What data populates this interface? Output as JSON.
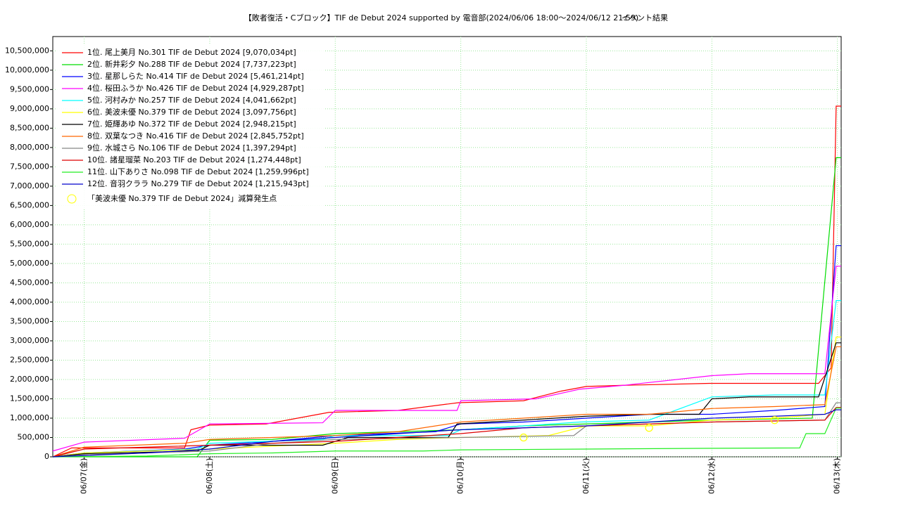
{
  "chart_data": {
    "type": "line",
    "title": "【敗者復活・Cブロック】TIF de Debut 2024 supported by 電音部(2024/06/06 18:00〜2024/06/12 21:59)",
    "subtitle": "イベント結果",
    "xlim": [
      6.75,
      13.03
    ],
    "xticks": [
      {
        "value": 7,
        "label": "06/07(金)"
      },
      {
        "value": 8,
        "label": "06/08(土)"
      },
      {
        "value": 9,
        "label": "06/09(日)"
      },
      {
        "value": 10,
        "label": "06/10(月)"
      },
      {
        "value": 11,
        "label": "06/11(火)"
      },
      {
        "value": 12,
        "label": "06/12(水)"
      },
      {
        "value": 13,
        "label": "06/13(木)"
      }
    ],
    "ylim": [
      0,
      10870000
    ],
    "yticks": [
      0,
      {
        "value": 500000,
        "label": "500,000"
      },
      {
        "value": 1000000,
        "label": "1,000,000"
      },
      {
        "value": 1500000,
        "label": "1,500,000"
      },
      {
        "value": 2000000,
        "label": "2,000,000"
      },
      {
        "value": 2500000,
        "label": "2,500,000"
      },
      {
        "value": 3000000,
        "label": "3,000,000"
      },
      {
        "value": 3500000,
        "label": "3,500,000"
      },
      {
        "value": 4000000,
        "label": "4,000,000"
      },
      {
        "value": 4500000,
        "label": "4,500,000"
      },
      {
        "value": 5000000,
        "label": "5,000,000"
      },
      {
        "value": 5500000,
        "label": "5,500,000"
      },
      {
        "value": 6000000,
        "label": "6,000,000"
      },
      {
        "value": 6500000,
        "label": "6,500,000"
      },
      {
        "value": 7000000,
        "label": "7,000,000"
      },
      {
        "value": 7500000,
        "label": "7,500,000"
      },
      {
        "value": 8000000,
        "label": "8,000,000"
      },
      {
        "value": 8500000,
        "label": "8,500,000"
      },
      {
        "value": 9000000,
        "label": "9,000,000"
      },
      {
        "value": 9500000,
        "label": "9,500,000"
      },
      {
        "value": 10000000,
        "label": "10,000,000"
      },
      {
        "value": 10500000,
        "label": "10,500,000"
      }
    ],
    "grid": true,
    "legend": "upper left",
    "series": [
      {
        "name": "1位. 尾上美月 No.301 TIF de Debut 2024 [9,070,034pt]",
        "color": "#ff0000",
        "x": [
          6.75,
          6.9,
          7.8,
          7.85,
          8.0,
          8.45,
          8.95,
          9.5,
          9.98,
          10.5,
          10.8,
          11.0,
          11.3,
          11.98,
          12.85,
          12.95,
          12.99,
          13.03
        ],
        "values": [
          0,
          230000,
          230000,
          700000,
          820000,
          850000,
          1150000,
          1200000,
          1400000,
          1450000,
          1700000,
          1820000,
          1850000,
          1900000,
          1900000,
          2300000,
          9070034,
          9070034
        ]
      },
      {
        "name": "2位. 新井彩夕 No.288 TIF de Debut 2024 [7,737,223pt]",
        "color": "#00dd00",
        "x": [
          6.75,
          7.9,
          8.0,
          8.5,
          9.0,
          9.5,
          10.0,
          10.5,
          11.0,
          11.5,
          12.0,
          12.8,
          12.99,
          13.03
        ],
        "values": [
          0,
          0,
          430000,
          450000,
          600000,
          650000,
          700000,
          800000,
          850000,
          900000,
          950000,
          1000000,
          7737223,
          7737223
        ]
      },
      {
        "name": "3位. 星那しらた No.414 TIF de Debut 2024 [5,461,214pt]",
        "color": "#0000ff",
        "x": [
          6.75,
          7.0,
          7.8,
          8.0,
          8.5,
          9.0,
          9.8,
          10.0,
          10.5,
          11.0,
          11.5,
          12.0,
          12.5,
          12.9,
          12.99,
          13.03
        ],
        "values": [
          0,
          100000,
          200000,
          300000,
          400000,
          550000,
          650000,
          850000,
          900000,
          1000000,
          1100000,
          1100000,
          1200000,
          1300000,
          5461214,
          5461214
        ]
      },
      {
        "name": "4位. 桜田ふうか No.426 TIF de Debut 2024 [4,929,287pt]",
        "color": "#ff00ff",
        "x": [
          6.75,
          7.0,
          7.8,
          8.0,
          8.9,
          9.0,
          9.97,
          10.0,
          10.6,
          10.95,
          11.3,
          12.0,
          12.3,
          12.9,
          12.99,
          13.03
        ],
        "values": [
          150000,
          380000,
          480000,
          850000,
          880000,
          1200000,
          1200000,
          1450000,
          1500000,
          1750000,
          1850000,
          2100000,
          2150000,
          2150000,
          4929287,
          4929287
        ]
      },
      {
        "name": "5位. 河村みか No.257 TIF de Debut 2024 [4,041,662pt]",
        "color": "#00ffff",
        "x": [
          6.75,
          7.0,
          7.9,
          8.0,
          8.9,
          9.0,
          9.9,
          10.0,
          10.5,
          10.95,
          11.5,
          12.0,
          12.5,
          12.9,
          12.99,
          13.03
        ],
        "values": [
          0,
          100000,
          200000,
          350000,
          450000,
          550000,
          550000,
          700000,
          800000,
          900000,
          950000,
          1550000,
          1600000,
          1600000,
          4041662,
          4041662
        ]
      },
      {
        "name": "6位. 美波未優 No.379 TIF de Debut 2024 [3,097,756pt]",
        "color": "#ffff00",
        "x": [
          6.75,
          7.0,
          8.0,
          9.0,
          9.5,
          10.0,
          10.7,
          11.0,
          11.5,
          12.0,
          12.5,
          12.9,
          12.99,
          13.03
        ],
        "values": [
          0,
          100000,
          200000,
          350000,
          450000,
          500000,
          550000,
          800000,
          800000,
          950000,
          1000000,
          1100000,
          3097756,
          3097756
        ]
      },
      {
        "name": "7位. 姫輝あゆ No.372 TIF de Debut 2024 [2,948,215pt]",
        "color": "#000000",
        "x": [
          6.75,
          7.0,
          7.9,
          8.0,
          8.9,
          9.1,
          9.9,
          9.97,
          10.5,
          11.0,
          11.5,
          11.9,
          12.0,
          12.3,
          12.85,
          12.99,
          13.03
        ],
        "values": [
          0,
          80000,
          150000,
          300000,
          300000,
          500000,
          500000,
          850000,
          950000,
          1050000,
          1100000,
          1100000,
          1500000,
          1550000,
          1550000,
          2948215,
          2948215
        ]
      },
      {
        "name": "8位. 双葉なつき No.416 TIF de Debut 2024 [2,845,752pt]",
        "color": "#ff6600",
        "x": [
          6.75,
          7.0,
          7.8,
          8.0,
          8.5,
          9.0,
          9.5,
          10.0,
          10.5,
          11.0,
          11.5,
          12.0,
          12.5,
          12.9,
          12.99,
          13.03
        ],
        "values": [
          0,
          250000,
          350000,
          450000,
          500000,
          550000,
          650000,
          900000,
          1000000,
          1100000,
          1100000,
          1250000,
          1300000,
          1350000,
          2845752,
          2845752
        ]
      },
      {
        "name": "9位. 水城さら No.106 TIF de Debut 2024 [1,397,294pt]",
        "color": "#888888",
        "x": [
          6.75,
          7.0,
          8.0,
          8.5,
          9.0,
          10.0,
          10.9,
          11.0,
          11.5,
          12.0,
          12.9,
          12.99,
          13.03
        ],
        "values": [
          0,
          50000,
          150000,
          350000,
          450000,
          500000,
          550000,
          800000,
          850000,
          900000,
          950000,
          1397294,
          1397294
        ]
      },
      {
        "name": "10位. 諸星瑠菜 No.203 TIF de Debut 2024 [1,274,448pt]",
        "color": "#dd0000",
        "x": [
          6.75,
          7.0,
          8.0,
          9.0,
          10.0,
          10.5,
          11.0,
          12.0,
          12.9,
          12.99,
          13.03
        ],
        "values": [
          0,
          200000,
          300000,
          400000,
          600000,
          750000,
          800000,
          900000,
          950000,
          1274448,
          1274448
        ]
      },
      {
        "name": "11位. 山下ありさ No.098 TIF de Debut 2024 [1,259,996pt]",
        "color": "#22ee22",
        "x": [
          6.75,
          7.5,
          8.0,
          8.5,
          9.0,
          9.7,
          10.0,
          11.0,
          12.0,
          12.7,
          12.75,
          12.9,
          12.99,
          13.03
        ],
        "values": [
          0,
          20000,
          80000,
          100000,
          150000,
          150000,
          180000,
          200000,
          220000,
          230000,
          600000,
          600000,
          1259996,
          1259996
        ]
      },
      {
        "name": "12位. 音羽クララ No.279 TIF de Debut 2024 [1,215,943pt]",
        "color": "#0000cc",
        "x": [
          6.75,
          7.5,
          8.0,
          8.5,
          9.0,
          9.5,
          10.0,
          10.5,
          11.0,
          11.5,
          12.0,
          12.5,
          12.9,
          12.99,
          13.03
        ],
        "values": [
          0,
          100000,
          200000,
          400000,
          500000,
          600000,
          700000,
          750000,
          800000,
          900000,
          1000000,
          1050000,
          1100000,
          1215943,
          1215943
        ]
      },
      {
        "name": "「美波未優 No.379 TIF de Debut 2024」減算発生点",
        "color": "#ffff00",
        "marker": "circle",
        "x": [
          10.5,
          11.5,
          12.5
        ],
        "values": [
          500000,
          750000,
          950000
        ]
      }
    ]
  }
}
